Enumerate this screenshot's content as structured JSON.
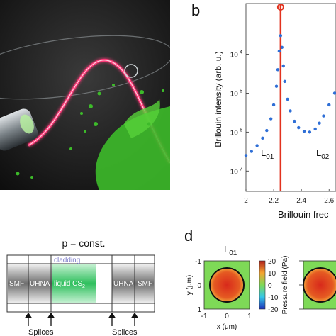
{
  "panel_b": {
    "letter": "b",
    "ylabel": "Brillouin intensity (arb. u.)",
    "xlabel": "Brillouin frec",
    "mode_labels": {
      "left": "L",
      "left_sub": "01",
      "right": "L",
      "right_sub": "02"
    },
    "y_ticks": [
      {
        "base": "10",
        "exp": "-4",
        "logv": -4
      },
      {
        "base": "10",
        "exp": "-5",
        "logv": -5
      },
      {
        "base": "10",
        "exp": "-6",
        "logv": -6
      },
      {
        "base": "10",
        "exp": "-7",
        "logv": -7
      }
    ],
    "x_ticks": [
      "2",
      "2.2",
      "2.4",
      "2.6"
    ],
    "colors": {
      "data": "#2f6fd6",
      "marker": "#e2321e"
    }
  },
  "chart_data": {
    "type": "scatter",
    "title": "",
    "xlabel": "Brillouin frec",
    "ylabel": "Brillouin intensity (arb. u.)",
    "yscale": "log",
    "xlim": [
      2.0,
      2.65
    ],
    "ylim": [
      3e-08,
      0.002
    ],
    "grid": true,
    "marker_x": 2.25,
    "series": [
      {
        "x": [
          2.0,
          2.04,
          2.08,
          2.12,
          2.15,
          2.18,
          2.2,
          2.22,
          2.23,
          2.24,
          2.25,
          2.26,
          2.27,
          2.28,
          2.3,
          2.32,
          2.35,
          2.38,
          2.42,
          2.46,
          2.5,
          2.53,
          2.56,
          2.6,
          2.64
        ],
        "y": [
          2.5e-07,
          3.2e-07,
          4.5e-07,
          7e-07,
          1.1e-06,
          2.2e-06,
          5e-06,
          1.5e-05,
          4e-05,
          0.00012,
          0.0003,
          0.00015,
          5e-05,
          2e-05,
          7e-06,
          3.5e-06,
          1.9e-06,
          1.3e-06,
          1.05e-06,
          1e-06,
          1.2e-06,
          1.7e-06,
          2.6e-06,
          5e-06,
          1e-05
        ]
      }
    ]
  },
  "panel_c": {
    "title": "p = const.",
    "cladding_label": "cladding",
    "segments": {
      "smf_left": "SMF",
      "uhna_left": "UHNA",
      "liquid": "liquid CS",
      "liquid_sub": "2",
      "uhna_right": "UHNA",
      "smf_right": "SMF"
    },
    "splices": [
      "Splices",
      "Splices"
    ]
  },
  "panel_d": {
    "letter": "d",
    "mode_title": "L",
    "mode_sub": "01",
    "ylabel": "y (μm)",
    "xlabel": "x (μm)",
    "ticks": [
      "-1",
      "0",
      "1"
    ],
    "colorbar_label": "Pressure field (Pa)",
    "colorbar_ticks": [
      "20",
      "10",
      "0",
      "-10",
      "-20"
    ],
    "colors": {
      "map_bg": "#7ed957",
      "core_hot": "#d8291b",
      "core_edge": "#f2a33a"
    }
  }
}
